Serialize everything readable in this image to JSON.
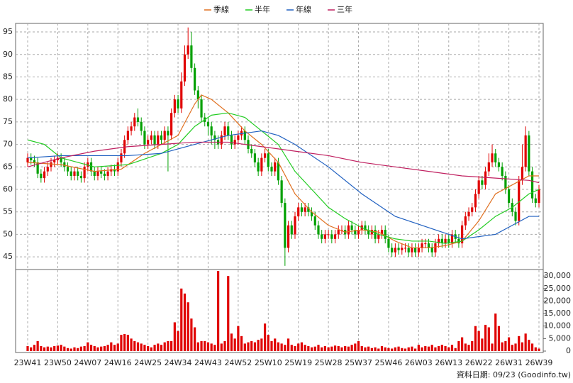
{
  "chart_data": [
    {
      "type": "candlestick",
      "categories": [
        "23W41",
        null,
        null,
        null,
        null,
        null,
        null,
        null,
        null,
        "23W50",
        null,
        null,
        null,
        null,
        null,
        null,
        null,
        null,
        "24W07",
        null,
        null,
        null,
        null,
        null,
        null,
        null,
        null,
        "24W16",
        null,
        null,
        null,
        null,
        null,
        null,
        null,
        null,
        "24W25",
        null,
        null,
        null,
        null,
        null,
        null,
        null,
        null,
        "24W34",
        null,
        null,
        null,
        null,
        null,
        null,
        null,
        null,
        "24W43",
        null,
        null,
        null,
        null,
        null,
        null,
        null,
        null,
        "24W52",
        null,
        null,
        null,
        null,
        null,
        null,
        null,
        null,
        "25W10",
        null,
        null,
        null,
        null,
        null,
        null,
        null,
        null,
        "25W19",
        null,
        null,
        null,
        null,
        null,
        null,
        null,
        null,
        "25W28",
        null,
        null,
        null,
        null,
        null,
        null,
        null,
        null,
        "25W37",
        null,
        null,
        null,
        null,
        null,
        null,
        null,
        null,
        "25W46",
        null,
        null,
        null,
        null,
        null,
        null,
        null,
        null,
        "26W03",
        null,
        null,
        null,
        null,
        null,
        null,
        null,
        null,
        "26W13",
        null,
        null,
        null,
        null,
        null,
        null,
        null,
        null,
        "26W22",
        null,
        null,
        null,
        null,
        null,
        null,
        null,
        null,
        "26W31",
        null,
        null,
        null,
        null,
        null,
        null,
        null,
        null,
        "26W39"
      ],
      "open": [
        66,
        67,
        66.5,
        66,
        63.5,
        62.5,
        64,
        65,
        66,
        66.5,
        67,
        66,
        65,
        64,
        63,
        64,
        63,
        62.5,
        65,
        66,
        64,
        63,
        64,
        63.5,
        63,
        64,
        64.5,
        64,
        66,
        68,
        71,
        73,
        74,
        76,
        75,
        73,
        70,
        71,
        72,
        70,
        72,
        71,
        73,
        72,
        77,
        80,
        78,
        84,
        90,
        92,
        87,
        82,
        80,
        76,
        75,
        74,
        72,
        71,
        70,
        72,
        74,
        72,
        70,
        71,
        72,
        73,
        71,
        69,
        68,
        66,
        64,
        67,
        68,
        65,
        64,
        66,
        62,
        57,
        47,
        52,
        50,
        54,
        56,
        55,
        56,
        55,
        54,
        52,
        50,
        49,
        50,
        50,
        49,
        50,
        51,
        51,
        50,
        52,
        51,
        50,
        51,
        52,
        51,
        50,
        51,
        49,
        50,
        51,
        49,
        47,
        46,
        47,
        46.5,
        47,
        47,
        46,
        47,
        46,
        47,
        48,
        48,
        47,
        46,
        48,
        49,
        48,
        49,
        48,
        50,
        49,
        48,
        52,
        54,
        55,
        56,
        59,
        62,
        61,
        64,
        66,
        68,
        66,
        65,
        63,
        60,
        57,
        55,
        53,
        62,
        65,
        72,
        64,
        58,
        57
      ],
      "high": [
        68,
        68,
        67.5,
        67,
        64.5,
        65,
        66,
        67,
        67.5,
        68,
        68,
        67,
        66,
        65,
        65,
        65,
        64,
        66,
        67,
        67,
        65,
        65,
        65,
        64.5,
        65,
        65.5,
        65.5,
        67,
        69,
        72,
        74,
        75,
        77,
        78,
        76,
        74,
        72,
        73,
        73,
        73,
        73,
        74,
        74,
        78,
        81,
        81,
        86,
        92,
        96,
        95,
        88,
        83,
        81,
        77,
        76,
        75,
        73,
        72,
        73,
        75,
        75,
        73,
        72,
        73,
        74,
        74,
        72,
        70,
        69,
        67,
        68,
        69,
        69,
        66,
        67,
        67,
        63,
        58,
        53,
        53,
        55,
        57,
        57,
        57,
        57,
        56,
        55,
        53,
        51,
        51,
        51,
        51,
        51,
        52,
        52,
        52,
        53,
        53,
        52,
        52,
        53,
        53,
        52,
        52,
        52,
        51,
        52,
        52,
        50,
        48,
        48,
        48,
        48,
        48,
        48,
        48,
        48,
        48,
        49,
        49,
        49,
        48,
        49,
        50,
        50,
        50,
        50,
        51,
        51,
        50,
        53,
        55,
        56,
        57,
        60,
        63,
        63,
        65,
        68,
        70,
        69,
        67,
        66,
        64,
        61,
        58,
        56,
        63,
        70,
        74,
        73,
        65,
        59,
        61
      ],
      "low": [
        65,
        65.5,
        65,
        62.5,
        61.5,
        61.5,
        63,
        64,
        65,
        65.5,
        65,
        64,
        63,
        62,
        62,
        62,
        61.5,
        61.5,
        64,
        63,
        62,
        62,
        62.5,
        62,
        62,
        63,
        63,
        63,
        65,
        67,
        70,
        72,
        73,
        74,
        72,
        69,
        69,
        70,
        69,
        69,
        70,
        70,
        64,
        71,
        76,
        77,
        77,
        83,
        89,
        86,
        81,
        78,
        75,
        74,
        72,
        70,
        69,
        69,
        69,
        71,
        71,
        69,
        69,
        70,
        71,
        70,
        68,
        67,
        65,
        63,
        63,
        66,
        64,
        63,
        63,
        61,
        56,
        43,
        46,
        49,
        49,
        53,
        54,
        54,
        54,
        53,
        51,
        49,
        48,
        48,
        49,
        48,
        48,
        49,
        50,
        49,
        49,
        50,
        49,
        49,
        50,
        50,
        49,
        49,
        48,
        48,
        49,
        48,
        46,
        45,
        45,
        45.5,
        45.5,
        46,
        45,
        45,
        45,
        45,
        46,
        47,
        46,
        45,
        45,
        47,
        47,
        47,
        47,
        47,
        48,
        47,
        47,
        51,
        53,
        54,
        55,
        58,
        60,
        60,
        63,
        65,
        65,
        64,
        62,
        59,
        56,
        54,
        52,
        52,
        61,
        64,
        63,
        57,
        56,
        56
      ],
      "close": [
        67,
        66.5,
        66,
        63.5,
        62.5,
        64,
        65,
        66,
        66.5,
        67,
        66,
        65,
        64,
        63,
        64,
        63,
        62.5,
        65,
        66,
        64,
        63,
        64,
        63.5,
        63,
        64,
        64.5,
        64,
        66,
        68,
        71,
        73,
        74,
        76,
        75,
        73,
        70,
        71,
        72,
        70,
        72,
        71,
        73,
        72,
        77,
        80,
        78,
        84,
        90,
        92,
        87,
        82,
        80,
        76,
        75,
        74,
        72,
        71,
        70,
        72,
        74,
        72,
        70,
        71,
        72,
        73,
        71,
        69,
        68,
        66,
        64,
        67,
        68,
        65,
        64,
        66,
        62,
        57,
        47,
        52,
        50,
        54,
        56,
        55,
        56,
        55,
        54,
        52,
        50,
        49,
        50,
        50,
        49,
        50,
        51,
        51,
        50,
        52,
        51,
        50,
        51,
        52,
        51,
        50,
        51,
        49,
        50,
        51,
        49,
        47,
        46,
        47,
        46.5,
        47,
        47,
        46,
        47,
        46,
        47,
        48,
        48,
        47,
        46,
        48,
        49,
        48,
        49,
        48,
        50,
        49,
        48,
        52,
        54,
        55,
        56,
        59,
        62,
        61,
        64,
        66,
        68,
        66,
        65,
        63,
        60,
        57,
        55,
        53,
        62,
        65,
        72,
        64,
        58,
        57,
        60
      ],
      "up_color": "#e00000",
      "down_color": "#00a000",
      "series": [
        {
          "name": "季線",
          "color": "#e07020",
          "x": [
            0,
            10,
            20,
            28,
            35,
            40,
            45,
            50,
            52,
            55,
            60,
            65,
            70,
            75,
            80,
            85,
            90,
            95,
            100,
            105,
            110,
            115,
            120,
            125,
            130,
            135,
            140,
            145,
            150,
            153
          ],
          "values": [
            66,
            65.5,
            64,
            64.5,
            68,
            70,
            72,
            79,
            81,
            80,
            77,
            73,
            70,
            66,
            59,
            55,
            52,
            50.5,
            51,
            50.5,
            48.5,
            47,
            47,
            47.5,
            48.5,
            53,
            59,
            61,
            63,
            63
          ]
        },
        {
          "name": "半年",
          "color": "#22cc22",
          "x": [
            0,
            5,
            10,
            15,
            20,
            30,
            40,
            45,
            50,
            55,
            60,
            65,
            70,
            75,
            80,
            85,
            90,
            95,
            100,
            105,
            110,
            115,
            120,
            125,
            130,
            135,
            140,
            145,
            150,
            153
          ],
          "values": [
            71,
            70,
            67,
            66,
            65,
            65.5,
            68,
            70,
            74,
            76.5,
            77,
            76,
            73,
            70,
            64,
            60,
            56,
            53.5,
            51.5,
            50,
            49,
            48.5,
            48.5,
            48,
            48.5,
            51,
            54,
            56,
            59,
            60
          ]
        },
        {
          "name": "年線",
          "color": "#2060c0",
          "x": [
            0,
            10,
            20,
            30,
            40,
            50,
            60,
            70,
            75,
            80,
            90,
            100,
            110,
            120,
            130,
            140,
            145,
            150,
            153
          ],
          "values": [
            67,
            67.5,
            67.5,
            67.5,
            68,
            70,
            72,
            73,
            72,
            70,
            65,
            59,
            54,
            51.5,
            49,
            50,
            52,
            54,
            54
          ]
        },
        {
          "name": "三年",
          "color": "#c02060",
          "x": [
            0,
            10,
            20,
            30,
            40,
            50,
            60,
            70,
            80,
            90,
            100,
            110,
            120,
            130,
            140,
            150,
            153
          ],
          "values": [
            65,
            67,
            68.5,
            69.5,
            70,
            70.5,
            70.5,
            69.5,
            68.5,
            67.5,
            66,
            65,
            64,
            63,
            62.5,
            62,
            61.5
          ]
        }
      ],
      "ylim": [
        42.5,
        96.9
      ],
      "yticks": [
        45,
        50,
        55,
        60,
        65,
        70,
        75,
        80,
        85,
        90,
        95
      ],
      "grid": true,
      "legend": "top",
      "note": "資料日期: 09/23 (Goodinfo.tw)"
    },
    {
      "type": "bar",
      "color": "#e00000",
      "values": [
        2000,
        1500,
        2500,
        4000,
        2000,
        1500,
        1800,
        1500,
        2000,
        2200,
        2500,
        1800,
        1200,
        1000,
        1500,
        1200,
        1800,
        2000,
        3500,
        2500,
        2000,
        1500,
        1800,
        2000,
        2500,
        3500,
        2500,
        3000,
        6500,
        6800,
        6500,
        5000,
        4000,
        3500,
        3000,
        2500,
        2000,
        1500,
        2500,
        3000,
        2500,
        3500,
        4000,
        4000,
        11500,
        8000,
        25000,
        23000,
        19500,
        13000,
        9500,
        3500,
        4000,
        4000,
        3500,
        3000,
        2500,
        32000,
        3000,
        4000,
        30000,
        7000,
        5000,
        10000,
        6000,
        3000,
        3500,
        4000,
        3500,
        4500,
        5000,
        11000,
        6500,
        4000,
        5000,
        3500,
        3000,
        2500,
        5000,
        2500,
        2000,
        3000,
        3500,
        2500,
        2000,
        1500,
        1800,
        2500,
        1500,
        2000,
        1500,
        1800,
        2200,
        2000,
        1500,
        2000,
        1800,
        2500,
        3000,
        4000,
        2000,
        1500,
        1800,
        1200,
        1500,
        1000,
        2000,
        1500,
        1200,
        1000,
        1500,
        1800,
        1200,
        1000,
        1500,
        1800,
        1000,
        2500,
        1500,
        2000,
        1800,
        2500,
        1500,
        2000,
        2500,
        2000,
        1500,
        2500,
        1200,
        4000,
        5500,
        3000,
        2500,
        4000,
        10000,
        8000,
        5000,
        10500,
        9500,
        3000,
        15000,
        10000,
        3500,
        4000,
        5500,
        2500,
        3000,
        6000,
        3500,
        7000,
        4500,
        3000,
        1500,
        1000
      ],
      "ylim": [
        0,
        32600
      ],
      "yticks": [
        0,
        {
          "value": 5000,
          "label": "5,000"
        },
        {
          "value": 10000,
          "label": "10,000"
        },
        {
          "value": 15000,
          "label": "15,000"
        },
        {
          "value": 20000,
          "label": "20,000"
        },
        {
          "value": 25000,
          "label": "25,000"
        },
        {
          "value": 30000,
          "label": "30,000"
        }
      ]
    }
  ]
}
